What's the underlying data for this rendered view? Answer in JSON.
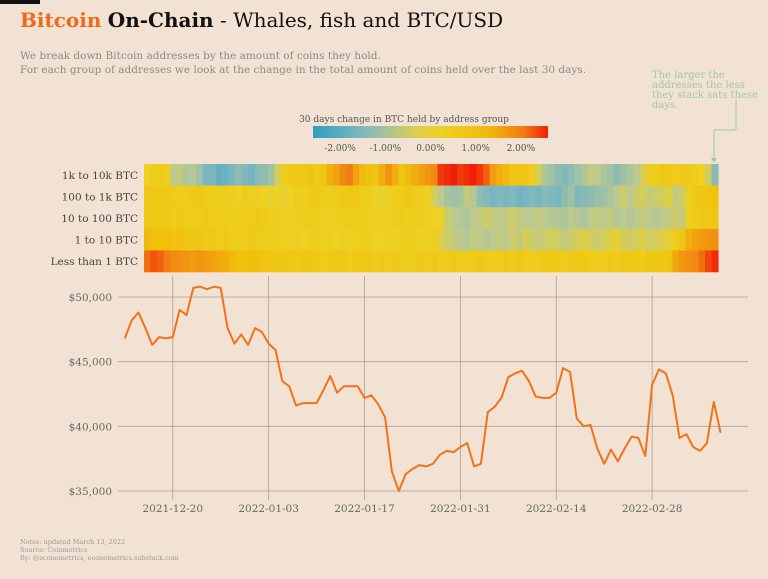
{
  "header": {
    "title_brand": "Bitcoin",
    "title_bold": "On-Chain",
    "title_rest": "- Whales, fish and BTC/USD",
    "subtitle_line1": "We break down Bitcoin addresses by the amount of coins they hold.",
    "subtitle_line2": "For each group of addresses we look at the change in the total amount of coins held over the last 30 days."
  },
  "annotation": "The larger the addresses the less they stack sats these days.",
  "footer": {
    "line1": "Notes: updated March 13, 2022",
    "line2": "Source: Coinmetrics",
    "line3": "By: @econometrics, econometrics.substack.com"
  },
  "colors": {
    "brand": "#f2681a",
    "line": "#f2721c",
    "background": "#f2e2d3",
    "scale": [
      "#2e9ec2",
      "#7ab6c0",
      "#bcc98f",
      "#eed122",
      "#f0c00c",
      "#f28a12",
      "#f21e08"
    ]
  },
  "chart_data": [
    {
      "type": "heatmap",
      "title": "30 days change in BTC held by address group",
      "legend": {
        "min": -2.6,
        "max": 2.6,
        "ticks": [
          -2.0,
          -1.0,
          0.0,
          1.0,
          2.0
        ],
        "tick_labels": [
          "-2.00%",
          "-1.00%",
          "0.00%",
          "1.00%",
          "2.00%"
        ]
      },
      "rows": [
        "1k to 10k BTC",
        "100 to 1k BTC",
        "10 to 100 BTC",
        "1 to 10 BTC",
        "Less than 1 BTC"
      ],
      "values": [
        [
          0.0,
          0.2,
          0.3,
          0.1,
          -0.6,
          -0.5,
          -0.8,
          -0.7,
          -1.0,
          -1.5,
          -1.5,
          -1.8,
          -1.7,
          -1.5,
          -1.2,
          -1.4,
          -1.6,
          -1.3,
          -1.2,
          -1.0,
          -0.3,
          0.3,
          0.4,
          0.5,
          0.4,
          0.7,
          0.3,
          0.6,
          1.2,
          1.4,
          1.8,
          1.9,
          1.4,
          1.0,
          0.8,
          0.7,
          1.2,
          1.7,
          1.2,
          0.7,
          1.0,
          1.2,
          1.4,
          1.6,
          1.8,
          2.4,
          2.5,
          2.6,
          2.4,
          2.5,
          2.6,
          2.4,
          2.1,
          1.5,
          1.2,
          1.0,
          0.6,
          0.6,
          0.6,
          0.3,
          -0.3,
          -0.8,
          -1.0,
          -1.2,
          -1.4,
          -1.2,
          -1.0,
          -0.8,
          -0.5,
          -0.6,
          -0.8,
          -1.0,
          -1.2,
          -1.0,
          -0.8,
          -0.6,
          -0.3,
          0.2,
          0.3,
          0.6,
          0.4,
          0.3,
          0.5,
          0.4,
          0.2,
          0.0,
          -0.3,
          -1.3
        ],
        [
          0.5,
          0.4,
          0.5,
          0.4,
          0.3,
          0.2,
          0.3,
          0.4,
          0.5,
          0.3,
          0.3,
          0.2,
          0.2,
          0.1,
          0.0,
          0.2,
          0.1,
          0.1,
          0.0,
          -0.1,
          0.0,
          -0.1,
          0.0,
          0.2,
          0.1,
          0.3,
          0.4,
          0.3,
          0.2,
          0.3,
          0.4,
          0.5,
          0.4,
          0.2,
          0.1,
          0.0,
          -0.1,
          0.1,
          0.2,
          0.3,
          0.5,
          0.3,
          0.1,
          0.0,
          -0.3,
          -0.6,
          -0.9,
          -1.0,
          -0.9,
          -0.5,
          -0.7,
          -1.2,
          -1.4,
          -1.5,
          -1.4,
          -1.5,
          -1.4,
          -1.6,
          -1.5,
          -1.4,
          -1.5,
          -1.3,
          -1.4,
          -1.5,
          -1.2,
          -1.0,
          -1.4,
          -1.3,
          -1.2,
          -1.1,
          -1.0,
          -0.8,
          -0.6,
          -0.4,
          -0.6,
          -0.4,
          -0.3,
          -0.5,
          -0.4,
          -0.3,
          -0.2,
          -0.5,
          -0.4,
          0.2,
          0.4,
          0.6,
          0.7,
          0.8
        ],
        [
          0.5,
          0.4,
          0.5,
          0.4,
          0.3,
          0.4,
          0.3,
          0.2,
          0.3,
          0.4,
          0.3,
          0.2,
          0.3,
          0.2,
          0.3,
          0.2,
          0.3,
          0.4,
          0.3,
          0.1,
          0.2,
          0.1,
          0.0,
          0.1,
          0.2,
          0.3,
          0.2,
          0.1,
          0.0,
          0.1,
          0.2,
          0.3,
          0.2,
          0.2,
          0.1,
          0.1,
          0.0,
          0.1,
          0.2,
          0.3,
          0.1,
          0.2,
          0.2,
          0.1,
          0.0,
          0.0,
          -0.4,
          -0.6,
          -0.7,
          -0.8,
          -0.6,
          -0.5,
          -0.4,
          -0.5,
          -0.6,
          -0.5,
          -0.4,
          -0.5,
          -0.6,
          -0.6,
          -0.5,
          -0.6,
          -0.7,
          -0.7,
          -0.8,
          -0.6,
          -0.7,
          -0.8,
          -0.6,
          -0.5,
          -0.6,
          -0.5,
          -0.7,
          -0.6,
          -0.7,
          -0.6,
          -0.5,
          -0.6,
          -0.7,
          -0.6,
          -0.5,
          -0.4,
          -0.5,
          0.1,
          0.3,
          0.4,
          0.5,
          0.6
        ],
        [
          1.0,
          0.9,
          0.8,
          0.9,
          0.7,
          0.8,
          0.6,
          0.5,
          0.6,
          0.4,
          0.5,
          0.3,
          0.4,
          0.2,
          0.3,
          0.2,
          0.4,
          0.3,
          0.2,
          0.1,
          0.2,
          0.1,
          0.0,
          0.1,
          0.0,
          0.1,
          0.2,
          0.1,
          0.1,
          0.0,
          0.1,
          0.0,
          0.1,
          0.2,
          0.1,
          0.0,
          0.0,
          0.1,
          0.0,
          0.1,
          0.2,
          0.1,
          0.0,
          0.0,
          0.1,
          -0.2,
          -0.4,
          -0.5,
          -0.6,
          -0.7,
          -0.5,
          -0.6,
          -0.7,
          -0.6,
          -0.5,
          -0.6,
          -0.4,
          -0.5,
          -0.3,
          -0.4,
          -0.5,
          -0.4,
          -0.3,
          -0.4,
          -0.5,
          -0.4,
          -0.3,
          -0.2,
          -0.3,
          -0.4,
          -0.3,
          -0.2,
          -0.1,
          -0.3,
          -0.4,
          -0.3,
          -0.2,
          -0.4,
          -0.3,
          -0.2,
          -0.1,
          0.3,
          0.6,
          1.2,
          1.4,
          1.5,
          1.6,
          1.7
        ],
        [
          2.0,
          2.2,
          2.1,
          1.9,
          1.8,
          1.7,
          1.6,
          1.5,
          1.6,
          1.5,
          1.4,
          1.3,
          1.2,
          1.0,
          0.9,
          0.8,
          0.9,
          0.8,
          0.7,
          0.6,
          0.5,
          0.6,
          0.5,
          0.4,
          0.6,
          0.5,
          0.4,
          0.3,
          0.4,
          0.5,
          0.4,
          0.3,
          0.4,
          0.5,
          0.4,
          0.3,
          0.4,
          0.3,
          0.4,
          0.3,
          0.2,
          0.3,
          0.4,
          0.3,
          0.4,
          0.2,
          0.3,
          0.4,
          0.3,
          0.2,
          0.3,
          0.4,
          0.3,
          0.2,
          0.3,
          0.4,
          0.3,
          0.4,
          0.3,
          0.2,
          0.3,
          0.4,
          0.5,
          0.4,
          0.3,
          0.4,
          0.5,
          0.4,
          0.3,
          0.2,
          0.3,
          0.4,
          0.3,
          0.4,
          0.5,
          0.4,
          0.3,
          0.5,
          0.6,
          0.5,
          0.7,
          1.3,
          1.6,
          1.7,
          1.8,
          2.0,
          2.3,
          2.5
        ]
      ]
    },
    {
      "type": "line",
      "xlim": [
        "2021-12-12",
        "2022-03-14"
      ],
      "ylim": [
        34500,
        52000
      ],
      "yticks": [
        35000,
        40000,
        45000,
        50000
      ],
      "ytick_labels": [
        "$35,000",
        "$40,000",
        "$45,000",
        "$50,000"
      ],
      "xticks": [
        "2021-12-20",
        "2022-01-03",
        "2022-01-17",
        "2022-01-31",
        "2022-02-14",
        "2022-02-28"
      ],
      "xtick_labels": [
        "2021-12-20",
        "2022-01-03",
        "2022-01-17",
        "2022-01-31",
        "2022-02-14",
        "2022-02-28"
      ],
      "grid": true,
      "series": [
        {
          "x": [
            "2021-12-13",
            "2021-12-14",
            "2021-12-15",
            "2021-12-16",
            "2021-12-17",
            "2021-12-18",
            "2021-12-19",
            "2021-12-20",
            "2021-12-21",
            "2021-12-22",
            "2021-12-23",
            "2021-12-24",
            "2021-12-25",
            "2021-12-26",
            "2021-12-27",
            "2021-12-28",
            "2021-12-29",
            "2021-12-30",
            "2021-12-31",
            "2022-01-01",
            "2022-01-02",
            "2022-01-03",
            "2022-01-04",
            "2022-01-05",
            "2022-01-06",
            "2022-01-07",
            "2022-01-08",
            "2022-01-09",
            "2022-01-10",
            "2022-01-11",
            "2022-01-12",
            "2022-01-13",
            "2022-01-14",
            "2022-01-15",
            "2022-01-16",
            "2022-01-17",
            "2022-01-18",
            "2022-01-19",
            "2022-01-20",
            "2022-01-21",
            "2022-01-22",
            "2022-01-23",
            "2022-01-24",
            "2022-01-25",
            "2022-01-26",
            "2022-01-27",
            "2022-01-28",
            "2022-01-29",
            "2022-01-30",
            "2022-01-31",
            "2022-02-01",
            "2022-02-02",
            "2022-02-03",
            "2022-02-04",
            "2022-02-05",
            "2022-02-06",
            "2022-02-07",
            "2022-02-08",
            "2022-02-09",
            "2022-02-10",
            "2022-02-11",
            "2022-02-12",
            "2022-02-13",
            "2022-02-14",
            "2022-02-15",
            "2022-02-16",
            "2022-02-17",
            "2022-02-18",
            "2022-02-19",
            "2022-02-20",
            "2022-02-21",
            "2022-02-22",
            "2022-02-23",
            "2022-02-24",
            "2022-02-25",
            "2022-02-26",
            "2022-02-27",
            "2022-02-28",
            "2022-03-01",
            "2022-03-02",
            "2022-03-03",
            "2022-03-04",
            "2022-03-05",
            "2022-03-06",
            "2022-03-07",
            "2022-03-08",
            "2022-03-09",
            "2022-03-10"
          ],
          "y": [
            46800,
            48200,
            48800,
            47600,
            46300,
            46900,
            46800,
            46900,
            49000,
            48600,
            50700,
            50800,
            50600,
            50800,
            50700,
            47600,
            46400,
            47100,
            46300,
            47600,
            47300,
            46400,
            45900,
            43500,
            43100,
            41600,
            41800,
            41800,
            41800,
            42800,
            43900,
            42600,
            43100,
            43100,
            43100,
            42200,
            42400,
            41700,
            40700,
            36500,
            35000,
            36300,
            36700,
            37000,
            36900,
            37100,
            37800,
            38100,
            38000,
            38400,
            38700,
            36900,
            37100,
            41100,
            41500,
            42200,
            43800,
            44100,
            44300,
            43500,
            42300,
            42200,
            42200,
            42600,
            44500,
            44200,
            40600,
            40000,
            40100,
            38300,
            37100,
            38200,
            37300,
            38300,
            39200,
            39100,
            37700,
            43200,
            44400,
            44100,
            42400,
            39100,
            39400,
            38400,
            38100,
            38700,
            41900,
            39500
          ]
        }
      ]
    }
  ]
}
